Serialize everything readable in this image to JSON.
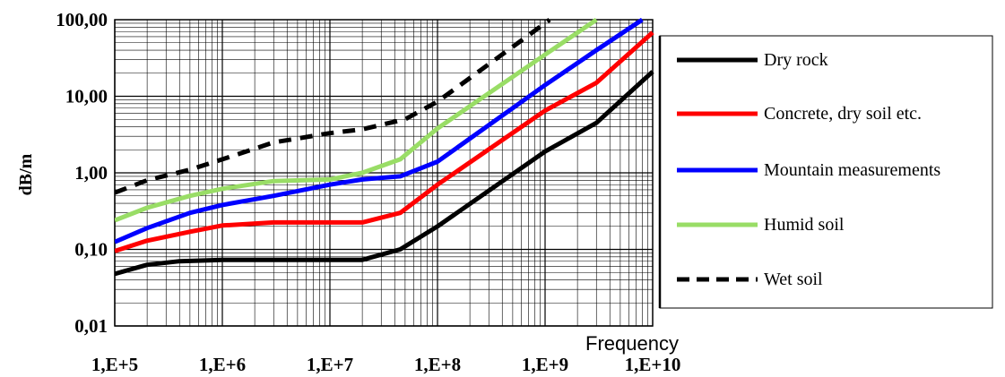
{
  "chart_data": {
    "type": "line",
    "title": "",
    "xlabel": "Frequency",
    "ylabel": "dB/m",
    "x_scale": "log",
    "y_scale": "log",
    "xlim": [
      100000,
      10000000000
    ],
    "ylim": [
      0.01,
      100
    ],
    "x_ticks": [
      {
        "value": 100000,
        "label": "1,E+5"
      },
      {
        "value": 1000000,
        "label": "1,E+6"
      },
      {
        "value": 10000000,
        "label": "1,E+7"
      },
      {
        "value": 100000000,
        "label": "1,E+8"
      },
      {
        "value": 1000000000,
        "label": "1,E+9"
      },
      {
        "value": 10000000000,
        "label": "1,E+10"
      }
    ],
    "y_ticks": [
      {
        "value": 100,
        "label": "100,00"
      },
      {
        "value": 10,
        "label": "10,00"
      },
      {
        "value": 1,
        "label": "1,00"
      },
      {
        "value": 0.1,
        "label": "0,10"
      },
      {
        "value": 0.01,
        "label": "0,01"
      }
    ],
    "grid": true,
    "legend_position": "right",
    "series": [
      {
        "name": "Dry rock",
        "color": "#000000",
        "dashed": false,
        "x": [
          100000,
          200000,
          400000,
          1000000,
          3000000,
          20000000,
          45000000,
          100000000,
          1000000000,
          3000000000,
          10000000000
        ],
        "y": [
          0.048,
          0.063,
          0.07,
          0.073,
          0.073,
          0.073,
          0.1,
          0.2,
          1.9,
          4.5,
          21
        ]
      },
      {
        "name": "Concrete, dry soil etc.",
        "color": "#ff0000",
        "dashed": false,
        "x": [
          100000,
          200000,
          500000,
          1000000,
          3000000,
          20000000,
          45000000,
          100000000,
          1000000000,
          3000000000,
          10000000000
        ],
        "y": [
          0.095,
          0.13,
          0.17,
          0.205,
          0.225,
          0.225,
          0.3,
          0.7,
          6.5,
          15,
          68
        ]
      },
      {
        "name": "Mountain measurements",
        "color": "#0000ff",
        "dashed": false,
        "x": [
          100000,
          200000,
          500000,
          1000000,
          3000000,
          10000000,
          20000000,
          45000000,
          100000000,
          1000000000,
          3000000000,
          8000000000
        ],
        "y": [
          0.125,
          0.19,
          0.3,
          0.38,
          0.5,
          0.7,
          0.82,
          0.9,
          1.4,
          14,
          40,
          100
        ]
      },
      {
        "name": "Humid soil",
        "color": "#99dd66",
        "dashed": false,
        "x": [
          100000,
          200000,
          500000,
          1000000,
          3000000,
          10000000,
          20000000,
          45000000,
          100000000,
          1000000000,
          3000000000
        ],
        "y": [
          0.24,
          0.35,
          0.5,
          0.62,
          0.78,
          0.82,
          1.0,
          1.5,
          3.8,
          35,
          100
        ]
      },
      {
        "name": "Wet soil",
        "color": "#000000",
        "dashed": true,
        "x": [
          100000,
          200000,
          500000,
          1000000,
          3000000,
          10000000,
          20000000,
          50000000,
          100000000,
          1000000000,
          1100000000
        ],
        "y": [
          0.55,
          0.8,
          1.1,
          1.5,
          2.5,
          3.3,
          3.7,
          5.0,
          8.5,
          90,
          100
        ]
      }
    ]
  }
}
